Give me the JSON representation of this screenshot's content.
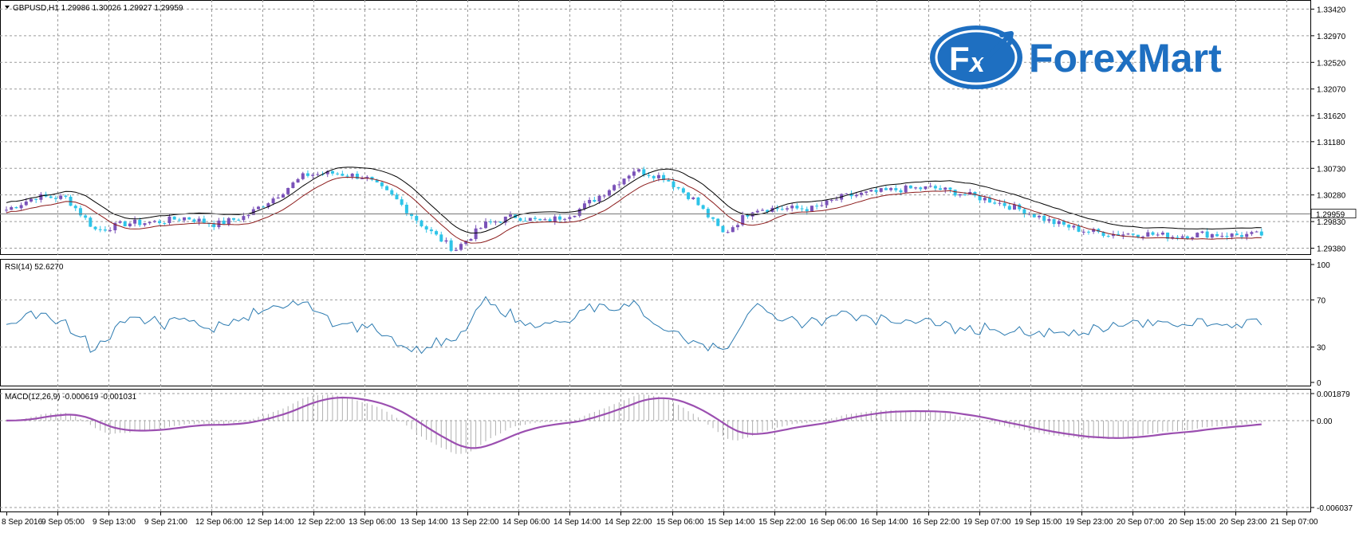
{
  "chart_data": [
    {
      "type": "candlestick",
      "title": "GBPUSD,H1  1.29986 1.30026 1.29927 1.29959",
      "symbol": "GBPUSD,H1",
      "ohlc": {
        "open": "1.29986",
        "high": "1.30026",
        "low": "1.29927",
        "close": "1.29959"
      },
      "last_price_label": "1.29959",
      "y_ticks": [
        "1.33420",
        "1.32970",
        "1.32520",
        "1.32070",
        "1.31620",
        "1.31180",
        "1.30730",
        "1.30280",
        "1.29830",
        "1.29380"
      ],
      "ylim": [
        1.2932,
        1.3352
      ],
      "x_ticks": [
        "8 Sep 2016",
        "9 Sep 05:00",
        "9 Sep 13:00",
        "9 Sep 21:00",
        "12 Sep 06:00",
        "12 Sep 14:00",
        "12 Sep 22:00",
        "13 Sep 06:00",
        "13 Sep 14:00",
        "13 Sep 22:00",
        "14 Sep 06:00",
        "14 Sep 14:00",
        "14 Sep 22:00",
        "15 Sep 06:00",
        "15 Sep 14:00",
        "15 Sep 22:00",
        "16 Sep 06:00",
        "16 Sep 14:00",
        "16 Sep 22:00",
        "19 Sep 07:00",
        "19 Sep 15:00",
        "19 Sep 23:00",
        "20 Sep 07:00",
        "20 Sep 15:00",
        "20 Sep 23:00",
        "21 Sep 07:00"
      ],
      "close_path": [
        1.3003,
        1.3025,
        1.3023,
        1.2968,
        1.298,
        1.2982,
        1.299,
        1.2978,
        1.2992,
        1.3025,
        1.3062,
        1.3065,
        1.3058,
        1.3022,
        1.2973,
        1.2935,
        1.2978,
        1.2992,
        1.2982,
        1.2998,
        1.3032,
        1.307,
        1.3058,
        1.302,
        1.2962,
        1.3005,
        1.3005,
        1.3005,
        1.3025,
        1.3032,
        1.3038,
        1.304,
        1.303,
        1.3018,
        1.3002,
        1.2982,
        1.2968,
        1.2962,
        1.2963,
        1.2958,
        1.2962,
        1.296,
        1.2961
      ],
      "close_scale": "index",
      "indicators": [
        "moving average (black)",
        "moving average (dark red)"
      ],
      "colors": {
        "up": "#7a52b8",
        "down": "#2ec4e8",
        "ma_fast": "#000000",
        "ma_slow": "#8b1a1a"
      }
    },
    {
      "type": "line",
      "title": "RSI(14) 52.6270",
      "y_ticks": [
        "100",
        "70",
        "30",
        "0"
      ],
      "ylim": [
        0,
        100
      ],
      "color": "#2b7ab0"
    },
    {
      "type": "bar+line",
      "title": "MACD(12,26,9) -0.000619 -0.001031",
      "y_ticks": [
        "0.001879",
        "0.00",
        "-0.006037"
      ],
      "ylim": [
        -0.006037,
        0.001879
      ],
      "color_signal": "#9b4fb0",
      "color_hist": "#b0b0b0"
    }
  ],
  "logo": {
    "brand": "ForexMart",
    "mark": "FX"
  }
}
